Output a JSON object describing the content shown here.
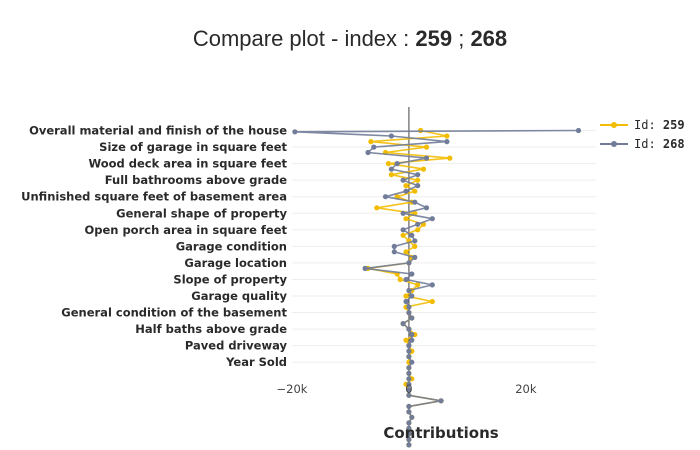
{
  "chart_data": {
    "type": "line",
    "title": {
      "prefix": "Compare plot - index : ",
      "id_a": "259",
      "separator": " ; ",
      "id_b": "268"
    },
    "xlabel": "Contributions",
    "xlim": [
      -20000,
      32000
    ],
    "xticks": [
      {
        "value": -20000,
        "label": "−20k"
      },
      {
        "value": 0,
        "label": "0"
      },
      {
        "value": 20000,
        "label": "20k"
      }
    ],
    "y_labels": [
      "Overall material and finish of the house",
      "Size of garage in square feet",
      "Wood deck area in square feet",
      "Full bathrooms above grade",
      "Unfinished square feet of basement area",
      "General shape of property",
      "Open porch area in square feet",
      "Garage condition",
      "Garage location",
      "Slope of property",
      "Garage quality",
      "General condition of the basement",
      "Half baths above grade",
      "Paved driveway",
      "Year Sold"
    ],
    "series": [
      {
        "name": "Id: ",
        "id": "259",
        "color": "#f2bc00",
        "points": [
          [
            2000,
            1.0
          ],
          [
            6500,
            1.33
          ],
          [
            -6500,
            1.67
          ],
          [
            3000,
            2.0
          ],
          [
            -4000,
            2.33
          ],
          [
            7000,
            2.67
          ],
          [
            -3500,
            3.0
          ],
          [
            2500,
            3.33
          ],
          [
            -3000,
            3.67
          ],
          [
            1500,
            4.0
          ],
          [
            -500,
            4.33
          ],
          [
            1000,
            4.67
          ],
          [
            -2000,
            5.0
          ],
          [
            500,
            5.33
          ],
          [
            -5500,
            5.67
          ],
          [
            1000,
            6.0
          ],
          [
            -500,
            6.33
          ],
          [
            2500,
            6.67
          ],
          [
            1500,
            7.0
          ],
          [
            -1000,
            7.33
          ],
          [
            0,
            7.67
          ],
          [
            1000,
            8.0
          ],
          [
            -500,
            8.33
          ],
          [
            500,
            8.67
          ],
          [
            0,
            9.0
          ],
          [
            -7000,
            9.33
          ],
          [
            -2000,
            9.67
          ],
          [
            -1500,
            10.0
          ],
          [
            1500,
            10.33
          ],
          [
            500,
            10.67
          ],
          [
            -500,
            11.0
          ],
          [
            4000,
            11.33
          ],
          [
            -500,
            11.67
          ],
          [
            0,
            12.0
          ],
          [
            500,
            12.33
          ],
          [
            -1000,
            12.67
          ],
          [
            0,
            13.0
          ],
          [
            1000,
            13.33
          ],
          [
            -500,
            13.67
          ],
          [
            0,
            14.0
          ],
          [
            500,
            14.33
          ],
          [
            0,
            14.67
          ],
          [
            0,
            15.0
          ],
          [
            0,
            15.33
          ],
          [
            0,
            15.67
          ],
          [
            500,
            16.0
          ],
          [
            -500,
            16.33
          ],
          [
            0,
            16.67
          ],
          [
            0,
            17.0
          ],
          [
            5500,
            17.33
          ],
          [
            0,
            17.67
          ],
          [
            0,
            18.0
          ],
          [
            500,
            18.33
          ],
          [
            0,
            18.67
          ],
          [
            0,
            19.0
          ],
          [
            0,
            19.33
          ],
          [
            0,
            19.67
          ],
          [
            0,
            20.0
          ]
        ]
      },
      {
        "name": "Id: ",
        "id": "268",
        "color": "#717c99",
        "points": [
          [
            29000,
            1.0
          ],
          [
            -19500,
            1.08
          ],
          [
            -3000,
            1.33
          ],
          [
            6500,
            1.67
          ],
          [
            -6000,
            2.0
          ],
          [
            -7000,
            2.33
          ],
          [
            3000,
            2.67
          ],
          [
            -2000,
            3.0
          ],
          [
            -3000,
            3.33
          ],
          [
            1500,
            3.67
          ],
          [
            -1000,
            4.0
          ],
          [
            1500,
            4.33
          ],
          [
            -500,
            4.67
          ],
          [
            -4000,
            5.0
          ],
          [
            1000,
            5.33
          ],
          [
            3000,
            5.67
          ],
          [
            -1000,
            6.0
          ],
          [
            4000,
            6.33
          ],
          [
            1500,
            6.67
          ],
          [
            -1000,
            7.0
          ],
          [
            500,
            7.33
          ],
          [
            1000,
            7.67
          ],
          [
            -2500,
            8.0
          ],
          [
            -2500,
            8.33
          ],
          [
            1000,
            8.67
          ],
          [
            0,
            9.0
          ],
          [
            -7500,
            9.33
          ],
          [
            500,
            9.67
          ],
          [
            -500,
            10.0
          ],
          [
            4000,
            10.33
          ],
          [
            0,
            10.67
          ],
          [
            500,
            11.0
          ],
          [
            -500,
            11.33
          ],
          [
            0,
            11.67
          ],
          [
            0,
            12.0
          ],
          [
            500,
            12.33
          ],
          [
            -1000,
            12.67
          ],
          [
            0,
            13.0
          ],
          [
            500,
            13.33
          ],
          [
            500,
            13.67
          ],
          [
            0,
            14.0
          ],
          [
            0,
            14.33
          ],
          [
            0,
            14.67
          ],
          [
            500,
            15.0
          ],
          [
            0,
            15.33
          ],
          [
            0,
            15.67
          ],
          [
            0,
            16.0
          ],
          [
            0,
            16.33
          ],
          [
            0,
            16.67
          ],
          [
            0,
            17.0
          ],
          [
            5500,
            17.33
          ],
          [
            0,
            17.67
          ],
          [
            0,
            18.0
          ],
          [
            500,
            18.33
          ],
          [
            0,
            18.67
          ],
          [
            0,
            19.0
          ],
          [
            0,
            19.33
          ],
          [
            0,
            19.67
          ],
          [
            0,
            20.0
          ]
        ]
      }
    ],
    "legend_placement": "top-right",
    "grid": true
  }
}
